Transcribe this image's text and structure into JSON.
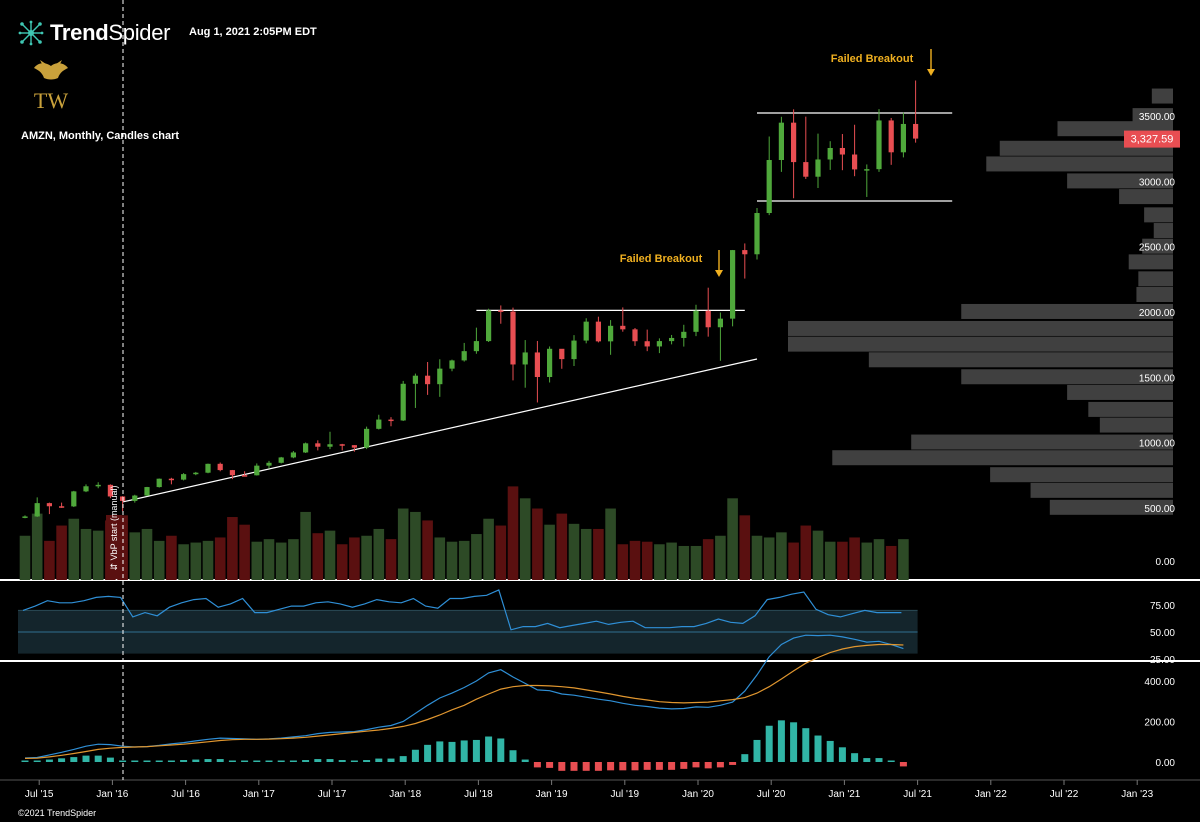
{
  "header": {
    "brand_prefix": "Trend",
    "brand_suffix": "Spider",
    "datetime": "Aug 1, 2021 2:05PM EDT",
    "ticker_line": "AMZN, Monthly, Candles chart",
    "logo_letters": "TW",
    "copyright": "©2021 TrendSpider"
  },
  "colors": {
    "up": "#4fa83b",
    "down": "#e84e52",
    "volume_up": "#2d4a26",
    "volume_down": "#5a1010",
    "rsi_line": "#2f8fd6",
    "macd_line": "#2f8fd6",
    "signal_line": "#e0962f",
    "hist_up": "#31b5a6",
    "hist_down": "#e84e52",
    "annotation": "#f0b020",
    "price_badge": "#e84e52",
    "vp_bar": "#404040"
  },
  "chart_data": {
    "type": "candlestick",
    "symbol": "AMZN",
    "interval": "Monthly",
    "x_ticks": [
      "Jul '15",
      "Jan '16",
      "Jul '16",
      "Jan '17",
      "Jul '17",
      "Jan '18",
      "Jul '18",
      "Jan '19",
      "Jul '19",
      "Jan '20",
      "Jul '20",
      "Jan '21",
      "Jul '21",
      "Jan '22",
      "Jul '22",
      "Jan '23"
    ],
    "price_axis": {
      "ticks": [
        "3500.00",
        "3000.00",
        "2500.00",
        "2000.00",
        "1500.00",
        "1000.00",
        "500.00"
      ],
      "ylim": [
        0,
        3900
      ]
    },
    "last_price": "3,327.59",
    "candles": [
      {
        "d": "2015-06",
        "o": 430,
        "h": 442,
        "l": 420,
        "c": 434
      },
      {
        "d": "2015-07",
        "o": 434,
        "h": 580,
        "l": 430,
        "c": 536
      },
      {
        "d": "2015-08",
        "o": 536,
        "h": 540,
        "l": 452,
        "c": 512
      },
      {
        "d": "2015-09",
        "o": 512,
        "h": 540,
        "l": 500,
        "c": 511
      },
      {
        "d": "2015-10",
        "o": 511,
        "h": 630,
        "l": 506,
        "c": 626
      },
      {
        "d": "2015-11",
        "o": 626,
        "h": 680,
        "l": 620,
        "c": 665
      },
      {
        "d": "2015-12",
        "o": 665,
        "h": 696,
        "l": 650,
        "c": 676
      },
      {
        "d": "2016-01",
        "o": 676,
        "h": 680,
        "l": 574,
        "c": 587
      },
      {
        "d": "2016-02",
        "o": 587,
        "h": 590,
        "l": 474,
        "c": 553
      },
      {
        "d": "2016-03",
        "o": 553,
        "h": 600,
        "l": 540,
        "c": 594
      },
      {
        "d": "2016-04",
        "o": 594,
        "h": 660,
        "l": 590,
        "c": 659
      },
      {
        "d": "2016-05",
        "o": 659,
        "h": 725,
        "l": 655,
        "c": 723
      },
      {
        "d": "2016-06",
        "o": 723,
        "h": 730,
        "l": 680,
        "c": 716
      },
      {
        "d": "2016-07",
        "o": 716,
        "h": 766,
        "l": 710,
        "c": 758
      },
      {
        "d": "2016-08",
        "o": 758,
        "h": 775,
        "l": 750,
        "c": 769
      },
      {
        "d": "2016-09",
        "o": 769,
        "h": 839,
        "l": 765,
        "c": 837
      },
      {
        "d": "2016-10",
        "o": 837,
        "h": 847,
        "l": 780,
        "c": 789
      },
      {
        "d": "2016-11",
        "o": 789,
        "h": 790,
        "l": 720,
        "c": 750
      },
      {
        "d": "2016-12",
        "o": 750,
        "h": 780,
        "l": 740,
        "c": 749
      },
      {
        "d": "2017-01",
        "o": 749,
        "h": 840,
        "l": 747,
        "c": 823
      },
      {
        "d": "2017-02",
        "o": 823,
        "h": 860,
        "l": 800,
        "c": 845
      },
      {
        "d": "2017-03",
        "o": 845,
        "h": 890,
        "l": 840,
        "c": 886
      },
      {
        "d": "2017-04",
        "o": 886,
        "h": 935,
        "l": 880,
        "c": 924
      },
      {
        "d": "2017-05",
        "o": 924,
        "h": 1000,
        "l": 920,
        "c": 994
      },
      {
        "d": "2017-06",
        "o": 994,
        "h": 1017,
        "l": 940,
        "c": 968
      },
      {
        "d": "2017-07",
        "o": 968,
        "h": 1083,
        "l": 950,
        "c": 987
      },
      {
        "d": "2017-08",
        "o": 987,
        "h": 990,
        "l": 940,
        "c": 980
      },
      {
        "d": "2017-09",
        "o": 980,
        "h": 980,
        "l": 930,
        "c": 961
      },
      {
        "d": "2017-10",
        "o": 961,
        "h": 1122,
        "l": 950,
        "c": 1105
      },
      {
        "d": "2017-11",
        "o": 1105,
        "h": 1213,
        "l": 1100,
        "c": 1176
      },
      {
        "d": "2017-12",
        "o": 1176,
        "h": 1195,
        "l": 1125,
        "c": 1169
      },
      {
        "d": "2018-01",
        "o": 1169,
        "h": 1472,
        "l": 1165,
        "c": 1450
      },
      {
        "d": "2018-02",
        "o": 1450,
        "h": 1528,
        "l": 1265,
        "c": 1512
      },
      {
        "d": "2018-03",
        "o": 1512,
        "h": 1617,
        "l": 1365,
        "c": 1447
      },
      {
        "d": "2018-04",
        "o": 1447,
        "h": 1638,
        "l": 1350,
        "c": 1566
      },
      {
        "d": "2018-05",
        "o": 1566,
        "h": 1635,
        "l": 1546,
        "c": 1629
      },
      {
        "d": "2018-06",
        "o": 1629,
        "h": 1763,
        "l": 1620,
        "c": 1700
      },
      {
        "d": "2018-07",
        "o": 1700,
        "h": 1880,
        "l": 1680,
        "c": 1777
      },
      {
        "d": "2018-08",
        "o": 1777,
        "h": 2025,
        "l": 1770,
        "c": 2012
      },
      {
        "d": "2018-09",
        "o": 2012,
        "h": 2050,
        "l": 1910,
        "c": 2003
      },
      {
        "d": "2018-10",
        "o": 2003,
        "h": 2033,
        "l": 1476,
        "c": 1598
      },
      {
        "d": "2018-11",
        "o": 1598,
        "h": 1785,
        "l": 1420,
        "c": 1690
      },
      {
        "d": "2018-12",
        "o": 1690,
        "h": 1778,
        "l": 1307,
        "c": 1502
      },
      {
        "d": "2019-01",
        "o": 1502,
        "h": 1736,
        "l": 1460,
        "c": 1718
      },
      {
        "d": "2019-02",
        "o": 1718,
        "h": 1690,
        "l": 1565,
        "c": 1639
      },
      {
        "d": "2019-03",
        "o": 1639,
        "h": 1823,
        "l": 1586,
        "c": 1781
      },
      {
        "d": "2019-04",
        "o": 1781,
        "h": 1952,
        "l": 1760,
        "c": 1926
      },
      {
        "d": "2019-05",
        "o": 1926,
        "h": 1964,
        "l": 1767,
        "c": 1775
      },
      {
        "d": "2019-06",
        "o": 1775,
        "h": 1938,
        "l": 1672,
        "c": 1894
      },
      {
        "d": "2019-07",
        "o": 1894,
        "h": 2035,
        "l": 1849,
        "c": 1867
      },
      {
        "d": "2019-08",
        "o": 1867,
        "h": 1877,
        "l": 1740,
        "c": 1776
      },
      {
        "d": "2019-09",
        "o": 1776,
        "h": 1865,
        "l": 1700,
        "c": 1736
      },
      {
        "d": "2019-10",
        "o": 1736,
        "h": 1798,
        "l": 1685,
        "c": 1777
      },
      {
        "d": "2019-11",
        "o": 1777,
        "h": 1824,
        "l": 1752,
        "c": 1801
      },
      {
        "d": "2019-12",
        "o": 1801,
        "h": 1902,
        "l": 1735,
        "c": 1848
      },
      {
        "d": "2020-01",
        "o": 1848,
        "h": 2055,
        "l": 1815,
        "c": 2009
      },
      {
        "d": "2020-02",
        "o": 2009,
        "h": 2186,
        "l": 1811,
        "c": 1883
      },
      {
        "d": "2020-03",
        "o": 1883,
        "h": 1996,
        "l": 1626,
        "c": 1949
      },
      {
        "d": "2020-04",
        "o": 1949,
        "h": 2475,
        "l": 1890,
        "c": 2474
      },
      {
        "d": "2020-05",
        "o": 2474,
        "h": 2525,
        "l": 2256,
        "c": 2442
      },
      {
        "d": "2020-06",
        "o": 2442,
        "h": 2796,
        "l": 2402,
        "c": 2758
      },
      {
        "d": "2020-07",
        "o": 2758,
        "h": 3344,
        "l": 2742,
        "c": 3164
      },
      {
        "d": "2020-08",
        "o": 3164,
        "h": 3495,
        "l": 3073,
        "c": 3450
      },
      {
        "d": "2020-09",
        "o": 3450,
        "h": 3552,
        "l": 2871,
        "c": 3148
      },
      {
        "d": "2020-10",
        "o": 3148,
        "h": 3496,
        "l": 3019,
        "c": 3036
      },
      {
        "d": "2020-11",
        "o": 3036,
        "h": 3366,
        "l": 2950,
        "c": 3168
      },
      {
        "d": "2020-12",
        "o": 3168,
        "h": 3308,
        "l": 3088,
        "c": 3256
      },
      {
        "d": "2021-01",
        "o": 3256,
        "h": 3363,
        "l": 3086,
        "c": 3206
      },
      {
        "d": "2021-02",
        "o": 3206,
        "h": 3434,
        "l": 3040,
        "c": 3092
      },
      {
        "d": "2021-03",
        "o": 3092,
        "h": 3130,
        "l": 2881,
        "c": 3094
      },
      {
        "d": "2021-04",
        "o": 3094,
        "h": 3554,
        "l": 3073,
        "c": 3467
      },
      {
        "d": "2021-05",
        "o": 3467,
        "h": 3486,
        "l": 3127,
        "c": 3223
      },
      {
        "d": "2021-06",
        "o": 3223,
        "h": 3526,
        "l": 3184,
        "c": 3440
      },
      {
        "d": "2021-07",
        "o": 3440,
        "h": 3773,
        "l": 3297,
        "c": 3328
      }
    ],
    "volume": [
      52,
      78,
      46,
      64,
      72,
      60,
      58,
      70,
      76,
      56,
      60,
      46,
      52,
      42,
      44,
      46,
      50,
      74,
      65,
      45,
      48,
      44,
      48,
      80,
      55,
      58,
      42,
      50,
      52,
      60,
      48,
      84,
      80,
      70,
      50,
      45,
      46,
      54,
      72,
      64,
      110,
      96,
      84,
      65,
      78,
      66,
      60,
      60,
      84,
      42,
      46,
      45,
      42,
      44,
      40,
      40,
      48,
      52,
      96,
      76,
      52,
      50,
      56,
      44,
      64,
      58,
      45,
      45,
      50,
      44,
      48,
      40,
      48
    ],
    "volume_axis": {
      "ticks": [
        "0.00"
      ]
    },
    "rsi": [
      70,
      74,
      79,
      77,
      77,
      79,
      82,
      83,
      82,
      64,
      68,
      65,
      73,
      77,
      80,
      81,
      73,
      76,
      81,
      68,
      68,
      71,
      74,
      74,
      77,
      78,
      76,
      73,
      76,
      80,
      78,
      77,
      81,
      74,
      72,
      81,
      81,
      83,
      84,
      89,
      52,
      55,
      55,
      58,
      54,
      56,
      58,
      60,
      57,
      59,
      60,
      54,
      54,
      54,
      55,
      55,
      58,
      62,
      59,
      58,
      65,
      80,
      82,
      85,
      87,
      71,
      66,
      64,
      67,
      70,
      68,
      68,
      68
    ],
    "rsi_axis": {
      "ticks": [
        "75.00",
        "50.00",
        "25.00"
      ],
      "band": [
        30,
        70
      ],
      "mid": 50
    },
    "macd": [
      20,
      22,
      35,
      48,
      62,
      78,
      88,
      86,
      78,
      74,
      76,
      82,
      90,
      96,
      104,
      112,
      118,
      116,
      114,
      112,
      114,
      118,
      124,
      130,
      140,
      146,
      148,
      150,
      160,
      172,
      180,
      200,
      240,
      280,
      316,
      340,
      368,
      400,
      440,
      456,
      420,
      388,
      356,
      352,
      336,
      330,
      320,
      310,
      302,
      290,
      280,
      274,
      266,
      262,
      264,
      272,
      270,
      280,
      296,
      350,
      430,
      520,
      580,
      612,
      626,
      624,
      626,
      618,
      606,
      592,
      596,
      580,
      560
    ],
    "signal": [
      18,
      19,
      25,
      33,
      42,
      52,
      62,
      68,
      72,
      74,
      76,
      80,
      84,
      88,
      94,
      100,
      106,
      110,
      112,
      112,
      113,
      115,
      118,
      122,
      128,
      134,
      140,
      146,
      152,
      158,
      166,
      176,
      190,
      210,
      232,
      258,
      280,
      310,
      336,
      360,
      372,
      378,
      378,
      376,
      372,
      366,
      356,
      346,
      336,
      324,
      314,
      306,
      298,
      294,
      292,
      294,
      296,
      302,
      308,
      318,
      340,
      372,
      410,
      450,
      488,
      516,
      540,
      558,
      570,
      576,
      580,
      580,
      578
    ],
    "macd_axis": {
      "ticks": [
        "400.00",
        "200.00",
        "0.00"
      ]
    },
    "vp_start_label": "⇵ VbP start (manual)",
    "annotations": [
      {
        "text": "Failed Breakout",
        "index": 56
      },
      {
        "text": "Failed Breakout",
        "index": 73
      }
    ],
    "trendlines": [
      {
        "name": "resistance-2018",
        "from": {
          "d": "2018-07",
          "p": 2012
        },
        "to": {
          "d": "2020-05",
          "p": 2012
        }
      },
      {
        "name": "support-rising",
        "from": {
          "d": "2016-02",
          "p": 545
        },
        "to": {
          "d": "2020-06",
          "p": 1640
        }
      },
      {
        "name": "range-top",
        "from": {
          "d": "2020-06",
          "p": 3524
        },
        "to": {
          "d": "2021-10",
          "p": 3524
        }
      },
      {
        "name": "range-bottom",
        "from": {
          "d": "2020-06",
          "p": 2850
        },
        "to": {
          "d": "2021-10",
          "p": 2850
        }
      }
    ],
    "volume_profile": [
      {
        "p": 3650,
        "v": 0.11
      },
      {
        "p": 3500,
        "v": 0.21
      },
      {
        "p": 3400,
        "v": 0.6
      },
      {
        "p": 3250,
        "v": 0.9
      },
      {
        "p": 3130,
        "v": 0.97
      },
      {
        "p": 3000,
        "v": 0.55
      },
      {
        "p": 2880,
        "v": 0.28
      },
      {
        "p": 2740,
        "v": 0.15
      },
      {
        "p": 2620,
        "v": 0.1
      },
      {
        "p": 2500,
        "v": 0.16
      },
      {
        "p": 2380,
        "v": 0.23
      },
      {
        "p": 2250,
        "v": 0.18
      },
      {
        "p": 2130,
        "v": 0.19
      },
      {
        "p": 2000,
        "v": 1.1
      },
      {
        "p": 1870,
        "v": 2.0
      },
      {
        "p": 1750,
        "v": 2.0
      },
      {
        "p": 1630,
        "v": 1.58
      },
      {
        "p": 1500,
        "v": 1.1
      },
      {
        "p": 1380,
        "v": 0.55
      },
      {
        "p": 1250,
        "v": 0.44
      },
      {
        "p": 1130,
        "v": 0.38
      },
      {
        "p": 1000,
        "v": 1.36
      },
      {
        "p": 880,
        "v": 1.77
      },
      {
        "p": 750,
        "v": 0.95
      },
      {
        "p": 630,
        "v": 0.74
      },
      {
        "p": 500,
        "v": 0.64
      }
    ]
  }
}
